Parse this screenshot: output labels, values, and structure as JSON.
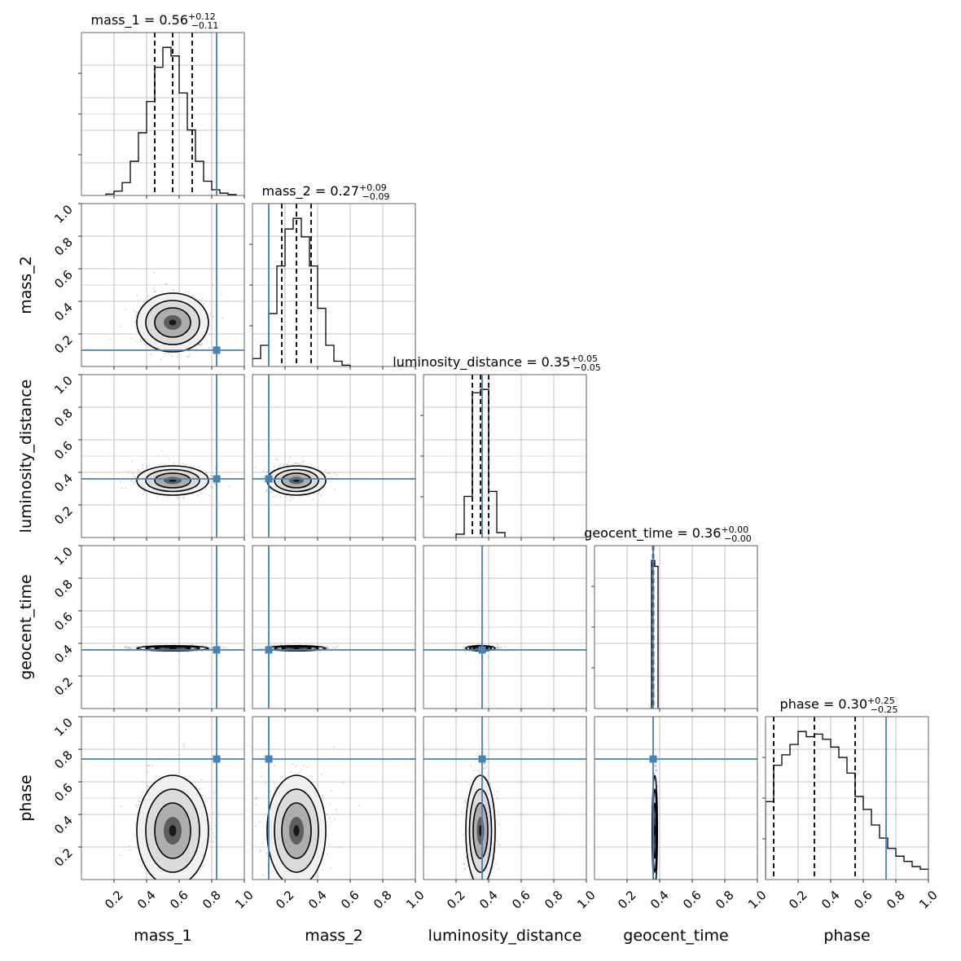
{
  "chart_data": {
    "type": "corner",
    "parameters": [
      "mass_1",
      "mass_2",
      "luminosity_distance",
      "geocent_time",
      "phase"
    ],
    "axis_range": [
      0,
      1
    ],
    "tick_values": [
      0.2,
      0.4,
      0.6,
      0.8,
      1.0
    ],
    "tick_labels": [
      "0.2",
      "0.4",
      "0.6",
      "0.8",
      "1.0"
    ],
    "grid": true,
    "colors": {
      "truth": "#4682b4",
      "hist": "#000000",
      "grid": "#b0b0b0"
    },
    "truths": {
      "mass_1": 0.83,
      "mass_2": 0.1,
      "luminosity_distance": 0.36,
      "geocent_time": 0.36,
      "phase": 0.74
    },
    "titles": [
      {
        "param": "mass_1",
        "name": "mass_1",
        "median": "0.56",
        "plus": "+0.12",
        "minus": "−0.11"
      },
      {
        "param": "mass_2",
        "name": "mass_2",
        "median": "0.27",
        "plus": "+0.09",
        "minus": "−0.09"
      },
      {
        "param": "luminosity_distance",
        "name": "luminosity_distance",
        "median": "0.35",
        "plus": "+0.05",
        "minus": "−0.05"
      },
      {
        "param": "geocent_time",
        "name": "geocent_time",
        "median": "0.36",
        "plus": "+0.00",
        "minus": "−0.00"
      },
      {
        "param": "phase",
        "name": "phase",
        "median": "0.30",
        "plus": "+0.25",
        "minus": "−0.25"
      }
    ],
    "quantiles": {
      "mass_1": [
        0.45,
        0.56,
        0.68
      ],
      "mass_2": [
        0.18,
        0.27,
        0.36
      ],
      "luminosity_distance": [
        0.3,
        0.35,
        0.4
      ],
      "geocent_time": [
        0.358,
        0.36,
        0.362
      ],
      "phase": [
        0.05,
        0.3,
        0.55
      ]
    },
    "histograms": {
      "mass_1": {
        "edges": [
          0.15,
          0.2,
          0.25,
          0.3,
          0.35,
          0.4,
          0.45,
          0.5,
          0.55,
          0.6,
          0.65,
          0.7,
          0.75,
          0.8,
          0.85,
          0.9,
          0.95
        ],
        "counts": [
          0.5,
          1.5,
          4.5,
          12,
          22,
          33,
          45,
          52,
          49,
          36,
          23,
          12,
          5,
          2,
          0.8,
          0.3
        ]
      },
      "mass_2": {
        "edges": [
          0.0,
          0.05,
          0.1,
          0.15,
          0.2,
          0.25,
          0.3,
          0.35,
          0.4,
          0.45,
          0.5,
          0.55,
          0.6
        ],
        "counts": [
          3,
          8,
          20,
          38,
          52,
          56,
          49,
          38,
          22,
          8,
          2,
          0.5
        ]
      },
      "luminosity_distance": {
        "edges": [
          0.2,
          0.25,
          0.3,
          0.35,
          0.4,
          0.45,
          0.5
        ],
        "counts": [
          2,
          25,
          88,
          90,
          28,
          3
        ]
      },
      "geocent_time": {
        "edges": [
          0.35,
          0.37,
          0.39
        ],
        "counts": [
          100,
          96
        ]
      },
      "phase": {
        "edges": [
          0.0,
          0.05,
          0.1,
          0.15,
          0.2,
          0.25,
          0.3,
          0.35,
          0.4,
          0.45,
          0.5,
          0.55,
          0.6,
          0.65,
          0.7,
          0.75,
          0.8,
          0.85,
          0.9,
          0.95,
          1.0
        ],
        "counts": [
          30,
          44,
          48,
          52,
          57,
          55,
          56,
          54,
          51,
          47,
          41,
          32,
          27,
          21,
          16,
          12,
          9,
          7,
          5,
          4
        ]
      }
    },
    "posterior_2d": {
      "mass_1": {
        "center": 0.56,
        "spread": 0.11
      },
      "mass_2": {
        "center": 0.27,
        "spread": 0.09
      },
      "luminosity_distance": {
        "center": 0.35,
        "spread": 0.045
      },
      "geocent_time": {
        "center": 0.37,
        "spread": 0.008
      },
      "phase": {
        "center": 0.3,
        "spread": 0.17
      }
    }
  }
}
